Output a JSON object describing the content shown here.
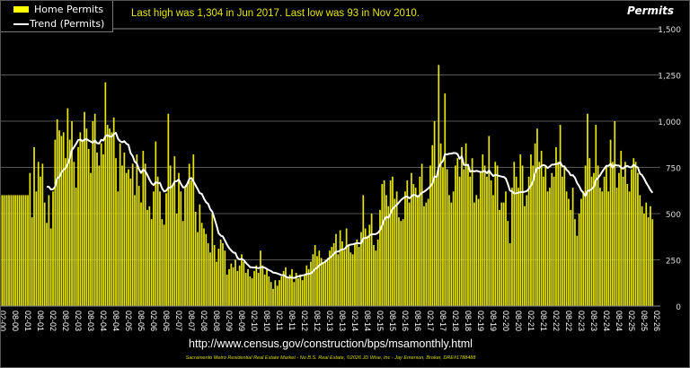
{
  "chart_data": {
    "type": "bar",
    "title": "Permits",
    "annotation": "Last high was 1,304 in Jun 2017. Last low was 93 in Nov 2010.",
    "x_start": "2000-01",
    "frequency": "monthly",
    "ylim": [
      0,
      1500
    ],
    "yticks": [
      "0",
      "250",
      "500",
      "750",
      "1,000",
      "1,250",
      "1,500"
    ],
    "ytick_values": [
      0,
      250,
      500,
      750,
      1000,
      1250,
      1500
    ],
    "xtick_labels": [
      "02-00",
      "08-00",
      "02-01",
      "08-01",
      "02-02",
      "08-02",
      "02-03",
      "08-03",
      "02-04",
      "08-04",
      "02-05",
      "08-05",
      "02-06",
      "08-06",
      "02-07",
      "08-07",
      "02-08",
      "08-08",
      "02-09",
      "08-09",
      "02-10",
      "08-10",
      "02-11",
      "08-11",
      "02-12",
      "08-12",
      "02-13",
      "08-13",
      "02-14",
      "08-14",
      "02-15",
      "08-15",
      "02-16",
      "08-16",
      "02-17",
      "08-17",
      "02-18",
      "08-18",
      "02-19",
      "08-19",
      "02-20",
      "08-20",
      "02-21",
      "08-21",
      "02-22",
      "08-22",
      "02-23",
      "08-23",
      "02-24",
      "08-24",
      "02-25",
      "08-25",
      "02-26"
    ],
    "grid": true,
    "legend_position": "top-left",
    "series": [
      {
        "name": "Home Permits",
        "type": "bar",
        "color": "#ffff00",
        "values": [
          600,
          600,
          600,
          600,
          600,
          600,
          600,
          600,
          600,
          600,
          600,
          600,
          600,
          600,
          720,
          480,
          860,
          620,
          780,
          700,
          770,
          560,
          450,
          600,
          420,
          620,
          900,
          1010,
          950,
          920,
          940,
          800,
          1070,
          900,
          1000,
          780,
          640,
          860,
          940,
          900,
          1050,
          960,
          850,
          720,
          1000,
          1040,
          830,
          760,
          880,
          820,
          1210,
          980,
          960,
          940,
          1020,
          800,
          620,
          880,
          760,
          830,
          720,
          740,
          690,
          770,
          600,
          820,
          650,
          560,
          840,
          770,
          520,
          540,
          470,
          620,
          890,
          700,
          620,
          470,
          440,
          610,
          1040,
          760,
          650,
          810,
          500,
          720,
          620,
          460,
          640,
          660,
          770,
          680,
          820,
          510,
          400,
          550,
          450,
          420,
          390,
          340,
          290,
          500,
          330,
          240,
          310,
          360,
          340,
          300,
          170,
          200,
          230,
          210,
          250,
          190,
          220,
          280,
          240,
          180,
          200,
          160,
          150,
          190,
          220,
          180,
          300,
          220,
          170,
          200,
          160,
          130,
          93,
          140,
          110,
          140,
          160,
          190,
          210,
          150,
          170,
          200,
          130,
          180,
          150,
          170,
          140,
          170,
          220,
          200,
          240,
          280,
          330,
          270,
          300,
          260,
          230,
          250,
          260,
          300,
          320,
          340,
          390,
          280,
          410,
          350,
          300,
          420,
          330,
          290,
          280,
          340,
          360,
          320,
          400,
          600,
          420,
          380,
          440,
          500,
          330,
          300,
          360,
          520,
          660,
          680,
          600,
          540,
          680,
          700,
          580,
          620,
          480,
          460,
          470,
          620,
          680,
          560,
          720,
          660,
          640,
          600,
          700,
          770,
          540,
          560,
          580,
          760,
          870,
          1000,
          700,
          1304,
          880,
          750,
          1150,
          740,
          600,
          560,
          620,
          760,
          800,
          700,
          860,
          740,
          880,
          760,
          700,
          800,
          560,
          600,
          580,
          720,
          820,
          760,
          700,
          920,
          680,
          600,
          780,
          760,
          520,
          560,
          560,
          620,
          460,
          340,
          640,
          780,
          700,
          640,
          820,
          760,
          540,
          600,
          700,
          820,
          760,
          880,
          960,
          780,
          840,
          700,
          760,
          620,
          640,
          720,
          700,
          860,
          780,
          980,
          700,
          760,
          620,
          580,
          520,
          640,
          470,
          380,
          500,
          580,
          620,
          760,
          1040,
          800,
          700,
          720,
          980,
          760,
          640,
          620,
          700,
          760,
          620,
          900,
          780,
          1000,
          640,
          720,
          840,
          700,
          780,
          660,
          620,
          740,
          800,
          780,
          720,
          600,
          540,
          500,
          560,
          480,
          540,
          470
        ]
      },
      {
        "name": "Trend (Permits)",
        "type": "line",
        "color": "#ffffff",
        "method": "12-month moving average of Home Permits"
      }
    ]
  },
  "source_url": "http://www.census.gov/construction/bps/msamonthly.html",
  "footer": "Sacramento Metro Residential Real Estate Market - No B.S. Real Estate, ©2026 JD Wise, Inc - Jay Emerson, Broker, DRE#1788488"
}
